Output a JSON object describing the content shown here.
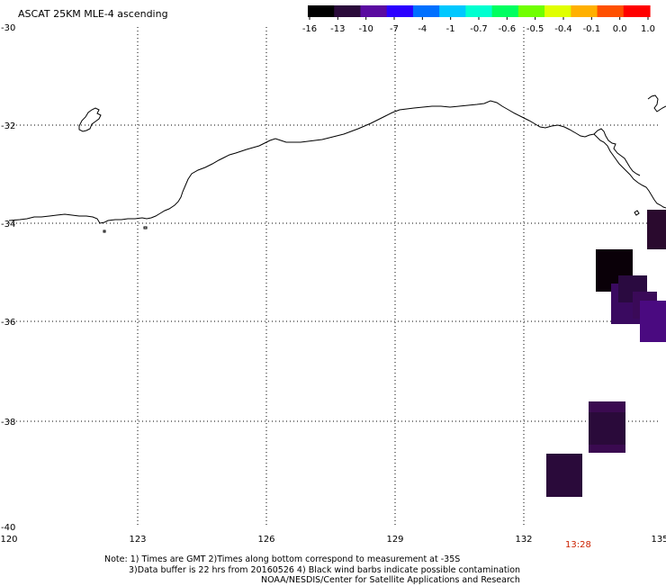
{
  "title": "ASCAT 25KM MLE-4 ascending",
  "colorbar": {
    "labels": [
      "-16",
      "-13",
      "-10",
      "-7",
      "-4",
      "-1",
      "-0.7",
      "-0.6",
      "-0.5",
      "-0.4",
      "-0.1",
      "0.0",
      "1.0"
    ],
    "colors": [
      "#000000",
      "#2a0a3a",
      "#5a0aa0",
      "#2a00ff",
      "#0070ff",
      "#00c8ff",
      "#00ffd0",
      "#00ff60",
      "#70ff00",
      "#e0ff00",
      "#ffb000",
      "#ff5000",
      "#ff0000"
    ]
  },
  "axes": {
    "x_ticks": [
      "120",
      "123",
      "126",
      "129",
      "132",
      "135"
    ],
    "y_ticks": [
      "-30",
      "-32",
      "-34",
      "-36",
      "-38",
      "-40"
    ]
  },
  "time_label": "13:28",
  "notes": {
    "line1": "Note: 1) Times are GMT 2)Times along bottom correspond to measurement at -35S",
    "line2": "3)Data buffer is 22 hrs from 20160526 4) Black wind barbs indicate possible contamination",
    "line3": "NOAA/NESDIS/Center for Satellite Applications and Research"
  },
  "colors": {
    "time_label": "#cc2200",
    "grid": "#000000"
  }
}
